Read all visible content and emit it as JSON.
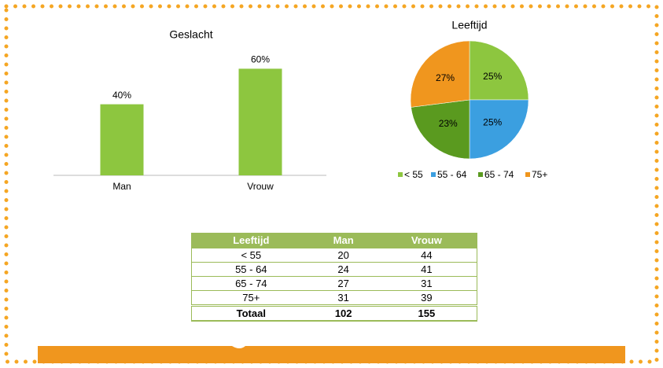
{
  "chart_data": [
    {
      "type": "bar",
      "title": "Geslacht",
      "categories": [
        "Man",
        "Vrouw"
      ],
      "values": [
        40,
        60
      ],
      "value_labels": [
        "40%",
        "60%"
      ],
      "color": "#8dc63f"
    },
    {
      "type": "pie",
      "title": "Leeftijd",
      "categories": [
        "< 55",
        "55 - 64",
        "65 - 74",
        "75+"
      ],
      "values": [
        25,
        25,
        23,
        27
      ],
      "value_labels": [
        "25%",
        "25%",
        "23%",
        "27%"
      ],
      "colors": [
        "#8dc63f",
        "#3b9fe0",
        "#5a9a1f",
        "#f0961e"
      ],
      "legend": "bottom"
    }
  ],
  "table": {
    "header": [
      "Leeftijd",
      "Man",
      "Vrouw"
    ],
    "rows": [
      [
        "< 55",
        "20",
        "44"
      ],
      [
        "55 - 64",
        "24",
        "41"
      ],
      [
        "65 - 74",
        "27",
        "31"
      ],
      [
        "75+",
        "31",
        "39"
      ]
    ],
    "total": [
      "Totaal",
      "102",
      "155"
    ]
  }
}
